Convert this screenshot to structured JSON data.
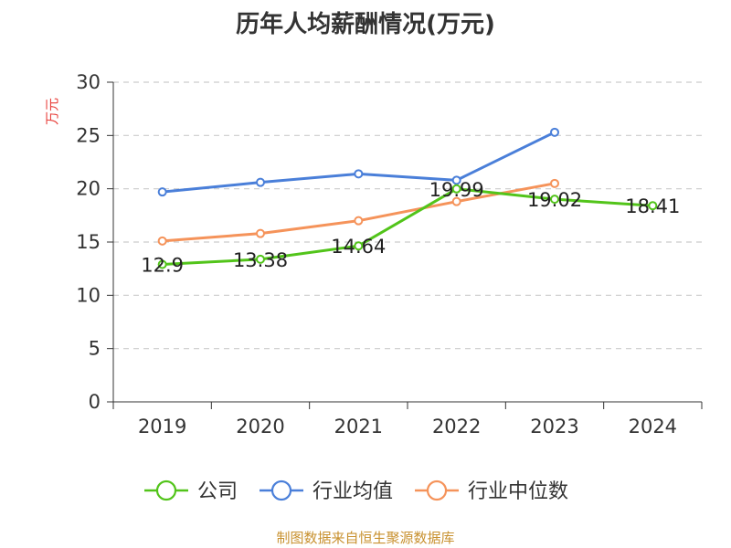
{
  "title": "历年人均薪酬情况(万元)",
  "source": "制图数据来自恒生聚源数据库",
  "chart_data": {
    "type": "line",
    "title": "历年人均薪酬情况(万元)",
    "categories": [
      "2019",
      "2020",
      "2021",
      "2022",
      "2023",
      "2024"
    ],
    "ylabel": "万元",
    "ylim": [
      0,
      30
    ],
    "yticks": [
      0,
      5,
      10,
      15,
      20,
      25,
      30
    ],
    "grid": true,
    "legend": "bottom",
    "series": [
      {
        "name": "公司",
        "color": "#52c41a",
        "values": [
          12.9,
          13.38,
          14.64,
          19.99,
          19.02,
          18.41
        ],
        "labels": [
          "12.9",
          "13.38",
          "14.64",
          "19.99",
          "19.02",
          "18.41"
        ]
      },
      {
        "name": "行业均值",
        "color": "#4a7fd9",
        "values": [
          19.7,
          20.6,
          21.4,
          20.8,
          25.3,
          null
        ]
      },
      {
        "name": "行业中位数",
        "color": "#f5935a",
        "values": [
          15.1,
          15.8,
          17.0,
          18.8,
          20.5,
          null
        ]
      }
    ]
  }
}
